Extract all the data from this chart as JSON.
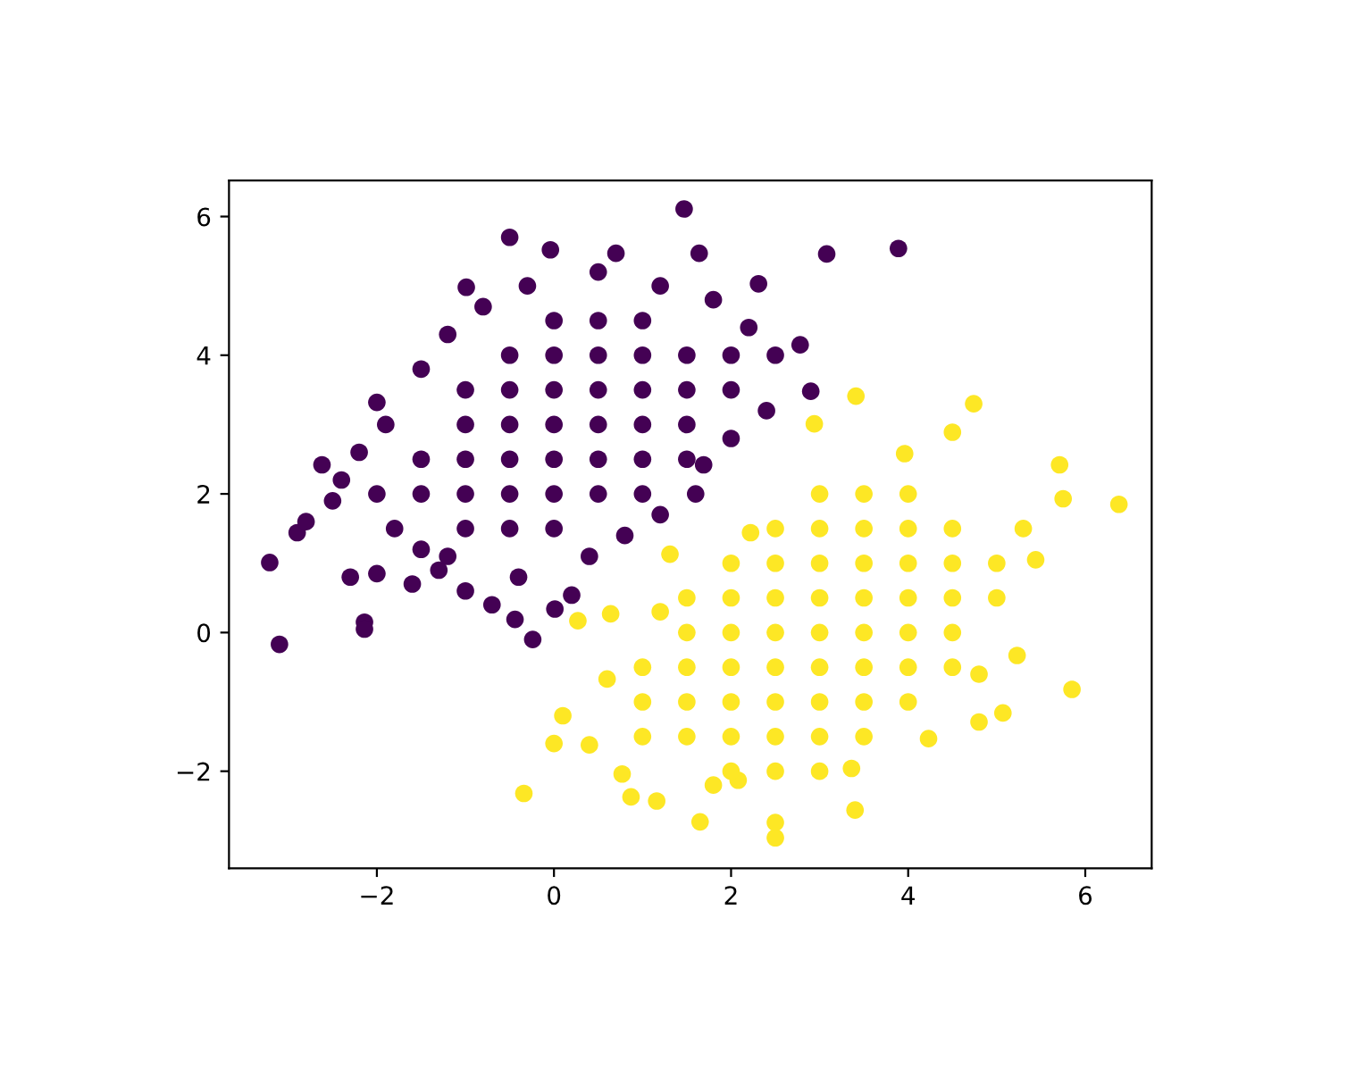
{
  "chart_data": {
    "type": "scatter",
    "xlim": [
      -3.67,
      6.75
    ],
    "ylim": [
      -3.4,
      6.52
    ],
    "xticks": [
      -2,
      0,
      2,
      4,
      6
    ],
    "yticks": [
      -2,
      0,
      2,
      4,
      6
    ],
    "grid": false,
    "legend": false,
    "marker": "circle",
    "series": [
      {
        "color": "#440154",
        "x": [
          1.47,
          3.08,
          3.89,
          -0.5,
          -3.21,
          -3.1,
          -2.62,
          -2.14,
          -2.14,
          -0.99,
          2.31,
          2.78,
          2.9,
          1.69,
          -0.24,
          -0.44,
          0.01,
          0.2,
          -2.9,
          -2.0,
          -0.04,
          0.7,
          1.64,
          -2.8,
          -2.5,
          -2.3,
          -2.0,
          -1.6,
          -1.3,
          -1.0,
          -0.7,
          -0.4,
          0.4,
          0.8,
          1.2,
          1.6,
          2.0,
          2.4,
          2.5,
          2.2,
          1.8,
          1.2,
          0.5,
          -0.3,
          -0.8,
          -1.2,
          -1.5,
          -1.9,
          -2.2,
          -2.4,
          -2,
          -1.5,
          -1.5,
          -1,
          -1,
          -1,
          -1,
          -1,
          -0.5,
          -0.5,
          -0.5,
          -0.5,
          -0.5,
          -0.5,
          0,
          0,
          0,
          0,
          0,
          0,
          0,
          0.5,
          0.5,
          0.5,
          0.5,
          0.5,
          0.5,
          1,
          1,
          1,
          1,
          1,
          1,
          1.5,
          1.5,
          1.5,
          1.5,
          2,
          2,
          -1.5,
          -1.8,
          -1.2
        ],
        "values": [
          6.11,
          5.46,
          5.54,
          5.7,
          1.01,
          -0.17,
          2.42,
          0.15,
          0.05,
          4.98,
          5.03,
          4.15,
          3.48,
          2.42,
          -0.1,
          0.19,
          0.34,
          0.54,
          1.44,
          3.32,
          5.52,
          5.47,
          5.47,
          1.6,
          1.9,
          0.8,
          0.85,
          0.7,
          0.9,
          0.6,
          0.4,
          0.8,
          1.1,
          1.4,
          1.7,
          2.0,
          2.8,
          3.2,
          4.0,
          4.4,
          4.8,
          5.0,
          5.2,
          5.0,
          4.7,
          4.3,
          3.8,
          3.0,
          2.6,
          2.2,
          2,
          2,
          2.5,
          1.5,
          2,
          2.5,
          3,
          3.5,
          1.5,
          2,
          2.5,
          3,
          3.5,
          4,
          1.5,
          2,
          2.5,
          3,
          3.5,
          4,
          4.5,
          2,
          2.5,
          3,
          3.5,
          4,
          4.5,
          2,
          2.5,
          3,
          3.5,
          4,
          4.5,
          2.5,
          3,
          3.5,
          4,
          3.5,
          4,
          1.2,
          1.5,
          1.1
        ]
      },
      {
        "color": "#fde725",
        "x": [
          6.38,
          5.85,
          -0.34,
          2.5,
          2.5,
          3.4,
          1.65,
          3.41,
          4.74,
          5.71,
          2.94,
          0.27,
          0.1,
          0.0,
          0.4,
          0.87,
          1.16,
          1.31,
          2.22,
          5.07,
          4.8,
          5.23,
          5.75,
          4.5,
          3.96,
          0.64,
          0.6,
          4.23,
          5.44,
          3.36,
          2.08,
          0.77,
          1.5,
          1.5,
          1.5,
          1.5,
          1.5,
          2,
          2,
          2,
          2,
          2,
          2,
          2,
          2.5,
          2.5,
          2.5,
          2.5,
          2.5,
          2.5,
          2.5,
          2.5,
          3,
          3,
          3,
          3,
          3,
          3,
          3,
          3,
          3,
          3.5,
          3.5,
          3.5,
          3.5,
          3.5,
          3.5,
          3.5,
          3.5,
          4,
          4,
          4,
          4,
          4,
          4,
          4,
          4.5,
          4.5,
          4.5,
          4.5,
          4.5,
          5,
          5,
          1,
          1,
          1,
          1.2,
          5.3,
          4.8,
          1.8
        ],
        "values": [
          1.85,
          -0.82,
          -2.32,
          -2.96,
          -2.74,
          -2.56,
          -2.73,
          3.41,
          3.3,
          2.42,
          3.01,
          0.17,
          -1.2,
          -1.6,
          -1.62,
          -2.37,
          -2.43,
          1.13,
          1.44,
          -1.16,
          -1.29,
          -0.33,
          1.93,
          2.89,
          2.58,
          0.27,
          -0.67,
          -1.53,
          1.05,
          -1.96,
          -2.13,
          -2.04,
          -1.5,
          -1,
          -0.5,
          0,
          0.5,
          -2,
          -1.5,
          -1,
          -0.5,
          0,
          0.5,
          1,
          -2,
          -1.5,
          -1,
          -0.5,
          0,
          0.5,
          1,
          1.5,
          -2,
          -1.5,
          -1,
          -0.5,
          0,
          0.5,
          1,
          1.5,
          2,
          -1.5,
          -1,
          -0.5,
          0,
          0.5,
          1,
          1.5,
          2,
          -1,
          -0.5,
          0,
          0.5,
          1,
          1.5,
          2,
          -0.5,
          0,
          0.5,
          1,
          1.5,
          0.5,
          1,
          -1,
          -0.5,
          -1.5,
          0.3,
          1.5,
          -0.6,
          -2.2
        ]
      }
    ]
  }
}
